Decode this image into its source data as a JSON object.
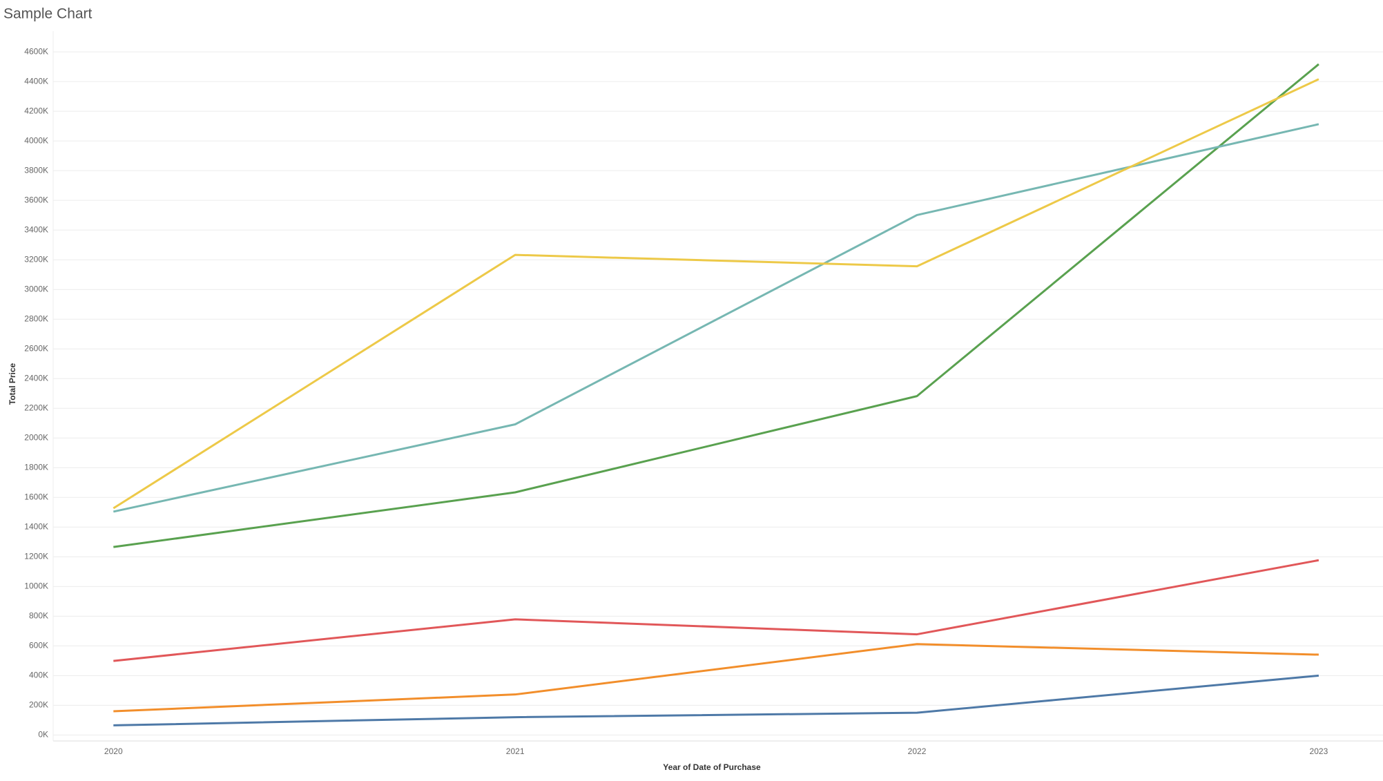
{
  "chart_data": {
    "type": "line",
    "title": "Sample Chart",
    "x_label": "Year of Date of Purchase",
    "y_label": "Total Price",
    "x": [
      2020,
      2021,
      2022,
      2023
    ],
    "xlim": [
      2019.85,
      2023.16
    ],
    "xticks": [
      2020,
      2021,
      2022,
      2023
    ],
    "ylim": [
      -40000,
      4740000
    ],
    "yticks": [
      {
        "value": 0,
        "label": "0K"
      },
      {
        "value": 200000,
        "label": "200K"
      },
      {
        "value": 400000,
        "label": "400K"
      },
      {
        "value": 600000,
        "label": "600K"
      },
      {
        "value": 800000,
        "label": "800K"
      },
      {
        "value": 1000000,
        "label": "1000K"
      },
      {
        "value": 1200000,
        "label": "1200K"
      },
      {
        "value": 1400000,
        "label": "1400K"
      },
      {
        "value": 1600000,
        "label": "1600K"
      },
      {
        "value": 1800000,
        "label": "1800K"
      },
      {
        "value": 2000000,
        "label": "2000K"
      },
      {
        "value": 2200000,
        "label": "2200K"
      },
      {
        "value": 2400000,
        "label": "2400K"
      },
      {
        "value": 2600000,
        "label": "2600K"
      },
      {
        "value": 2800000,
        "label": "2800K"
      },
      {
        "value": 3000000,
        "label": "3000K"
      },
      {
        "value": 3200000,
        "label": "3200K"
      },
      {
        "value": 3400000,
        "label": "3400K"
      },
      {
        "value": 3600000,
        "label": "3600K"
      },
      {
        "value": 3800000,
        "label": "3800K"
      },
      {
        "value": 4000000,
        "label": "4000K"
      },
      {
        "value": 4200000,
        "label": "4200K"
      },
      {
        "value": 4400000,
        "label": "4400K"
      },
      {
        "value": 4600000,
        "label": "4600K"
      }
    ],
    "grid": true,
    "series": [
      {
        "color": "#4e79a7",
        "values": [
          65000,
          120000,
          150000,
          400000
        ]
      },
      {
        "color": "#f28e2b",
        "values": [
          160000,
          273000,
          612000,
          541000
        ]
      },
      {
        "color": "#e15759",
        "values": [
          499000,
          779000,
          678000,
          1177000
        ]
      },
      {
        "color": "#59a14f",
        "values": [
          1266000,
          1634000,
          2282000,
          4517000
        ]
      },
      {
        "color": "#76b7b2",
        "values": [
          1504000,
          2092000,
          3501000,
          4113000
        ]
      },
      {
        "color": "#edc948",
        "values": [
          1527000,
          3233000,
          3156000,
          4416000
        ]
      }
    ]
  }
}
